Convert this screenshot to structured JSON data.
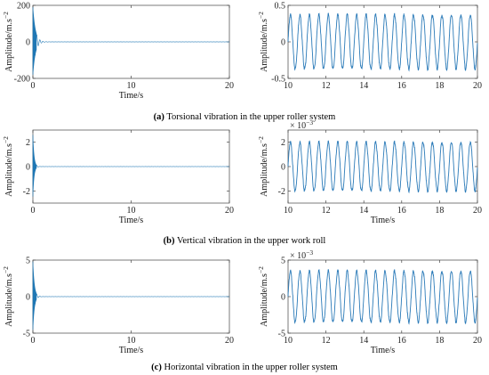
{
  "chart_data": {
    "type": "line",
    "line_color": "#1f77b4",
    "rows": [
      {
        "caption_letter": "(a)",
        "caption_text": " Torsional vibration in the upper roller system",
        "exp_label": "",
        "left": {
          "ylabel": "Amplitude/m.s",
          "ylabel_sup": "−2",
          "xlabel": "Time/s",
          "xlim": [
            0,
            20
          ],
          "ylim": [
            -200,
            200
          ],
          "xticks": [
            0,
            10,
            20
          ],
          "xtick_labels": [
            "0",
            "10",
            "20"
          ],
          "yticks": [
            -200,
            0,
            200
          ],
          "ytick_labels": [
            "-200",
            "0",
            "200"
          ],
          "signal": "decaying_transient",
          "initial_amplitude": 190,
          "decay_time": 0.25,
          "steady_amplitude": 0.35
        },
        "right": {
          "ylabel": "Amplitude/m.s",
          "ylabel_sup": "−2",
          "xlim": [
            10,
            20
          ],
          "ylim": [
            -0.5,
            0.5
          ],
          "xticks": [
            10,
            12,
            14,
            16,
            18,
            20
          ],
          "xtick_labels": [
            "10",
            "12",
            "14",
            "16",
            "18",
            "20"
          ],
          "yticks": [
            -0.5,
            0,
            0.5
          ],
          "ytick_labels": [
            "-0.5",
            "0",
            "0.5"
          ],
          "signal": "sinusoid",
          "amplitude": 0.37,
          "periods": 20
        }
      },
      {
        "caption_letter": "(b)",
        "caption_text": " Vertical vibration in the upper work roll",
        "exp_label": "× 10",
        "exp_sup": "−3",
        "left": {
          "ylabel": "Amplitude/m.s",
          "ylabel_sup": "−2",
          "xlabel": "Time/s",
          "xlim": [
            0,
            20
          ],
          "ylim": [
            -3,
            3
          ],
          "xticks": [
            0,
            10,
            20
          ],
          "xtick_labels": [
            "0",
            "10",
            "20"
          ],
          "yticks": [
            -2,
            0,
            2
          ],
          "ytick_labels": [
            "-2",
            "0",
            "2"
          ],
          "signal": "decaying_transient",
          "initial_amplitude": 2.6,
          "decay_time": 0.12,
          "steady_amplitude": 0.002
        },
        "right": {
          "ylabel": "Amplitude/m.s",
          "ylabel_sup": "−2",
          "xlabel": "Time/s",
          "xlim": [
            10,
            20
          ],
          "ylim": [
            -3,
            3
          ],
          "xticks": [
            10,
            12,
            14,
            16,
            18,
            20
          ],
          "xtick_labels": [
            "10",
            "12",
            "14",
            "16",
            "18",
            "20"
          ],
          "yticks": [
            -2,
            0,
            2
          ],
          "ytick_labels": [
            "-2",
            "0",
            "2"
          ],
          "signal": "sinusoid",
          "amplitude": 2.0,
          "periods": 20
        }
      },
      {
        "caption_letter": "(c)",
        "caption_text": " Horizontal vibration in the upper roller system",
        "exp_label": "× 10",
        "exp_sup": "−3",
        "left": {
          "ylabel": "Amplitude/m.s",
          "ylabel_sup": "−2",
          "xlabel": "Time/s",
          "xlim": [
            0,
            20
          ],
          "ylim": [
            -5,
            5
          ],
          "xticks": [
            0,
            10,
            20
          ],
          "xtick_labels": [
            "0",
            "10",
            "20"
          ],
          "yticks": [
            -5,
            0,
            5
          ],
          "ytick_labels": [
            "-5",
            "0",
            "5"
          ],
          "signal": "decaying_transient",
          "initial_amplitude": 4.8,
          "decay_time": 0.15,
          "steady_amplitude": 0.004
        },
        "right": {
          "ylabel": "Amplitude/m.s",
          "ylabel_sup": "−2",
          "xlabel": "Time/s",
          "xlim": [
            10,
            20
          ],
          "ylim": [
            -5,
            5
          ],
          "xticks": [
            10,
            12,
            14,
            16,
            18,
            20
          ],
          "xtick_labels": [
            "10",
            "12",
            "14",
            "16",
            "18",
            "20"
          ],
          "yticks": [
            -5,
            0,
            5
          ],
          "ytick_labels": [
            "-5",
            "0",
            "5"
          ],
          "signal": "sinusoid",
          "amplitude": 3.5,
          "periods": 20
        }
      }
    ]
  }
}
